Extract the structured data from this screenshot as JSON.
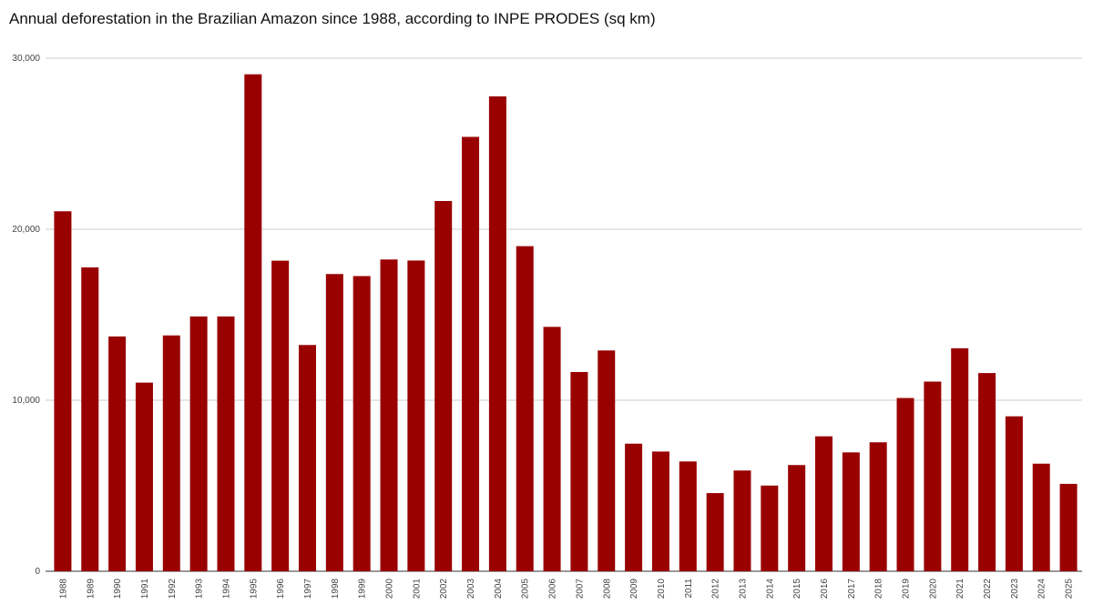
{
  "chart_data": {
    "type": "bar",
    "title": "Annual deforestation in the Brazilian Amazon since 1988, according to INPE PRODES (sq km)",
    "categories": [
      "1988",
      "1989",
      "1990",
      "1991",
      "1992",
      "1993",
      "1994",
      "1995",
      "1996",
      "1997",
      "1998",
      "1999",
      "2000",
      "2001",
      "2002",
      "2003",
      "2004",
      "2005",
      "2006",
      "2007",
      "2008",
      "2009",
      "2010",
      "2011",
      "2012",
      "2013",
      "2014",
      "2015",
      "2016",
      "2017",
      "2018",
      "2019",
      "2020",
      "2021",
      "2022",
      "2023",
      "2024",
      "2025"
    ],
    "values": [
      21050,
      17770,
      13730,
      11030,
      13790,
      14900,
      14900,
      29060,
      18160,
      13230,
      17380,
      17260,
      18230,
      18170,
      21650,
      25400,
      27770,
      19010,
      14290,
      11650,
      12910,
      7460,
      7000,
      6420,
      4570,
      5890,
      5010,
      6210,
      7890,
      6950,
      7540,
      10130,
      11090,
      13040,
      11590,
      9060,
      6290,
      5110
    ],
    "color": "#990000",
    "ylim": [
      0,
      30000
    ],
    "yticks": [
      0,
      {
        "value": 10000,
        "label": "10,000"
      },
      {
        "value": 20000,
        "label": "20,000"
      },
      {
        "value": 30000,
        "label": "30,000"
      }
    ],
    "grid": true
  }
}
